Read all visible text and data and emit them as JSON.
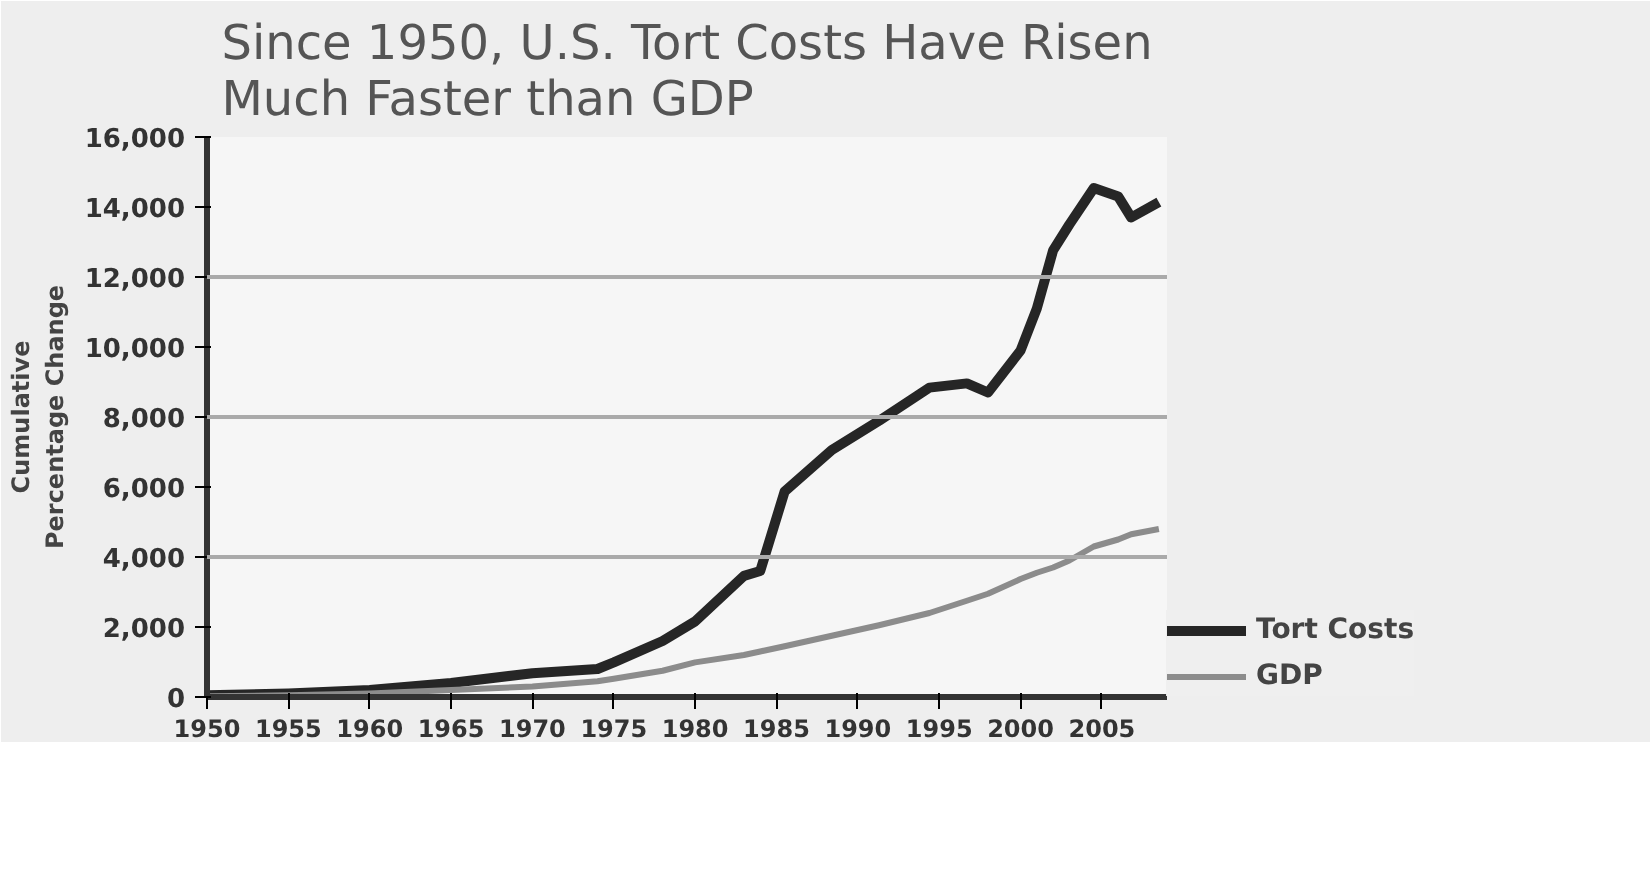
{
  "chart_data": {
    "type": "line",
    "title": "Since 1950, U.S. Tort Costs Have Risen\nMuch Faster than GDP",
    "ylabel": "Cumulative\nPercentage Change",
    "x": [
      1950,
      1955,
      1960,
      1965,
      1970,
      1974,
      1975,
      1978,
      1980,
      1983,
      1984,
      1985.5,
      1988.4,
      1991.3,
      1994.4,
      1996.7,
      1998,
      2000,
      2001,
      2002,
      2003,
      2004.5,
      2006,
      2006.8,
      2008.5
    ],
    "series": [
      {
        "name": "Tort Costs",
        "color": "#262626",
        "values": [
          50,
          100,
          200,
          400,
          680,
          800,
          990,
          1600,
          2160,
          3460,
          3600,
          5870,
          7060,
          7890,
          8840,
          8960,
          8700,
          9900,
          11100,
          12760,
          13500,
          14540,
          14300,
          13700,
          14140
        ]
      },
      {
        "name": "GDP",
        "color": "#8c8c8c",
        "values": [
          20,
          50,
          100,
          200,
          300,
          450,
          520,
          750,
          990,
          1200,
          1300,
          1450,
          1750,
          2050,
          2400,
          2750,
          2950,
          3370,
          3550,
          3700,
          3900,
          4300,
          4500,
          4650,
          4800
        ]
      }
    ],
    "xlim": [
      1950,
      2009
    ],
    "ylim": [
      0,
      16000
    ],
    "xticks": [
      1950,
      1955,
      1960,
      1965,
      1970,
      1975,
      1980,
      1985,
      1990,
      1995,
      2000,
      2005
    ],
    "yticks": [
      {
        "value": 0,
        "label": "0"
      },
      {
        "value": 2000,
        "label": "2,000"
      },
      {
        "value": 4000,
        "label": "4,000"
      },
      {
        "value": 6000,
        "label": "6,000"
      },
      {
        "value": 8000,
        "label": "8,000"
      },
      {
        "value": 10000,
        "label": "10,000"
      },
      {
        "value": 12000,
        "label": "12,000"
      },
      {
        "value": 14000,
        "label": "14,000"
      },
      {
        "value": 16000,
        "label": "16,000"
      }
    ],
    "ref_lines": [
      {
        "axis": "y",
        "value": 4000,
        "color": "#aaaaaa"
      },
      {
        "axis": "y",
        "value": 8000,
        "color": "#aaaaaa"
      },
      {
        "axis": "y",
        "value": 12000,
        "color": "#aaaaaa"
      }
    ],
    "legend": "right",
    "grid": false,
    "marker": "none",
    "line_style": "solid"
  }
}
